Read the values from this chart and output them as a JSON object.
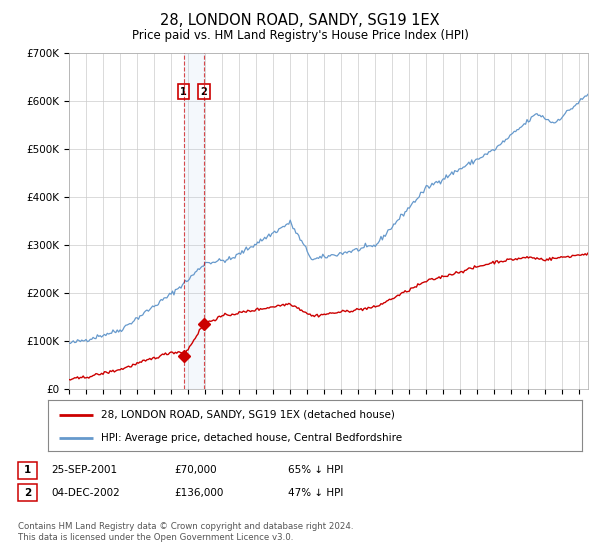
{
  "title": "28, LONDON ROAD, SANDY, SG19 1EX",
  "subtitle": "Price paid vs. HM Land Registry's House Price Index (HPI)",
  "background_color": "#ffffff",
  "plot_bg_color": "#ffffff",
  "grid_color": "#cccccc",
  "hpi_color": "#6699cc",
  "price_color": "#cc0000",
  "ylim": [
    0,
    700000
  ],
  "yticks": [
    0,
    100000,
    200000,
    300000,
    400000,
    500000,
    600000,
    700000
  ],
  "ytick_labels": [
    "£0",
    "£100K",
    "£200K",
    "£300K",
    "£400K",
    "£500K",
    "£600K",
    "£700K"
  ],
  "transaction1_date": 2001.73,
  "transaction1_price": 70000,
  "transaction1_label": "1",
  "transaction2_date": 2002.92,
  "transaction2_price": 136000,
  "transaction2_label": "2",
  "legend_line1": "28, LONDON ROAD, SANDY, SG19 1EX (detached house)",
  "legend_line2": "HPI: Average price, detached house, Central Bedfordshire",
  "table_row1": [
    "1",
    "25-SEP-2001",
    "£70,000",
    "65% ↓ HPI"
  ],
  "table_row2": [
    "2",
    "04-DEC-2002",
    "£136,000",
    "47% ↓ HPI"
  ],
  "footnote1": "Contains HM Land Registry data © Crown copyright and database right 2024.",
  "footnote2": "This data is licensed under the Open Government Licence v3.0.",
  "xmin": 1995.0,
  "xmax": 2025.5
}
